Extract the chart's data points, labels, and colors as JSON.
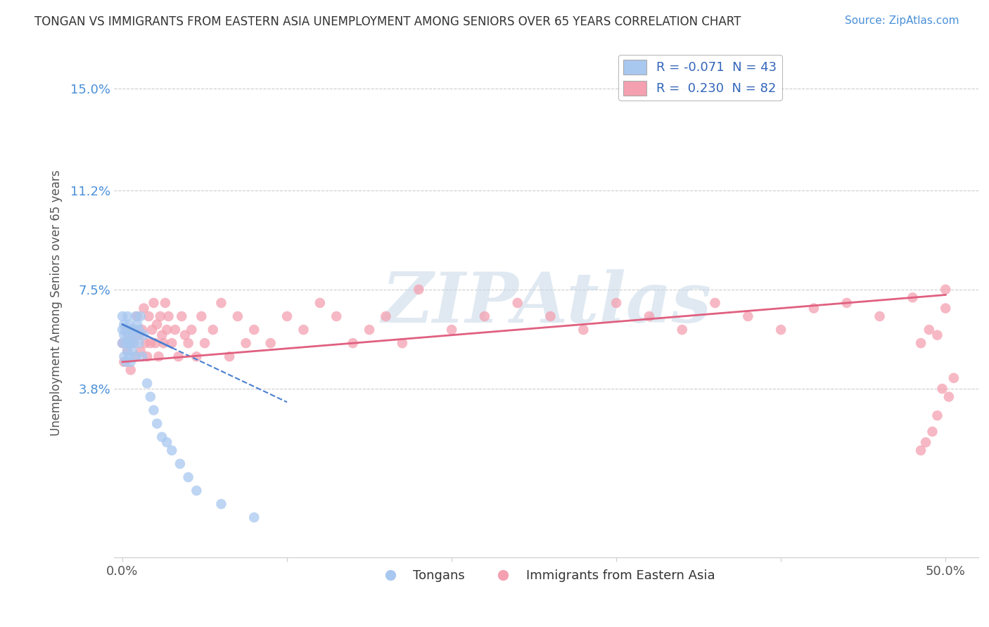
{
  "title": "TONGAN VS IMMIGRANTS FROM EASTERN ASIA UNEMPLOYMENT AMONG SENIORS OVER 65 YEARS CORRELATION CHART",
  "source": "Source: ZipAtlas.com",
  "ylabel": "Unemployment Among Seniors over 65 years",
  "ytick_values": [
    0.038,
    0.075,
    0.112,
    0.15
  ],
  "ytick_labels": [
    "3.8%",
    "7.5%",
    "11.2%",
    "15.0%"
  ],
  "xlim": [
    -0.005,
    0.52
  ],
  "ylim": [
    -0.025,
    0.165
  ],
  "legend1_label": "R = -0.071  N = 43",
  "legend2_label": "R =  0.230  N = 82",
  "legend_bottom1": "Tongans",
  "legend_bottom2": "Immigrants from Eastern Asia",
  "tongan_color": "#a8c8f0",
  "eastern_asia_color": "#f4a0b0",
  "tongan_line_color": "#4a80d0",
  "eastern_asia_line_color": "#e06080",
  "watermark": "ZIPAtlas",
  "tongan_x": [
    0.0,
    0.0,
    0.0,
    0.001,
    0.001,
    0.001,
    0.002,
    0.002,
    0.002,
    0.003,
    0.003,
    0.003,
    0.004,
    0.004,
    0.004,
    0.005,
    0.005,
    0.005,
    0.006,
    0.006,
    0.007,
    0.007,
    0.008,
    0.008,
    0.009,
    0.009,
    0.01,
    0.01,
    0.011,
    0.012,
    0.013,
    0.015,
    0.017,
    0.019,
    0.021,
    0.024,
    0.027,
    0.03,
    0.035,
    0.04,
    0.045,
    0.06,
    0.08
  ],
  "tongan_y": [
    0.06,
    0.065,
    0.055,
    0.058,
    0.062,
    0.05,
    0.055,
    0.06,
    0.048,
    0.052,
    0.058,
    0.065,
    0.05,
    0.055,
    0.062,
    0.048,
    0.055,
    0.06,
    0.052,
    0.058,
    0.055,
    0.06,
    0.05,
    0.065,
    0.058,
    0.062,
    0.055,
    0.06,
    0.065,
    0.05,
    0.058,
    0.04,
    0.035,
    0.03,
    0.025,
    0.02,
    0.018,
    0.015,
    0.01,
    0.005,
    0.0,
    -0.005,
    -0.01
  ],
  "eastern_asia_x": [
    0.0,
    0.001,
    0.002,
    0.003,
    0.004,
    0.005,
    0.006,
    0.007,
    0.008,
    0.009,
    0.01,
    0.011,
    0.012,
    0.013,
    0.014,
    0.015,
    0.016,
    0.017,
    0.018,
    0.019,
    0.02,
    0.021,
    0.022,
    0.023,
    0.024,
    0.025,
    0.026,
    0.027,
    0.028,
    0.03,
    0.032,
    0.034,
    0.036,
    0.038,
    0.04,
    0.042,
    0.045,
    0.048,
    0.05,
    0.055,
    0.06,
    0.065,
    0.07,
    0.075,
    0.08,
    0.09,
    0.1,
    0.11,
    0.12,
    0.13,
    0.14,
    0.15,
    0.16,
    0.17,
    0.18,
    0.2,
    0.22,
    0.24,
    0.26,
    0.28,
    0.3,
    0.32,
    0.34,
    0.36,
    0.38,
    0.4,
    0.42,
    0.44,
    0.46,
    0.48,
    0.5,
    0.5,
    0.49,
    0.495,
    0.485,
    0.505,
    0.502,
    0.498,
    0.495,
    0.492,
    0.488,
    0.485
  ],
  "eastern_asia_y": [
    0.055,
    0.048,
    0.06,
    0.052,
    0.058,
    0.045,
    0.06,
    0.055,
    0.05,
    0.065,
    0.058,
    0.052,
    0.06,
    0.068,
    0.055,
    0.05,
    0.065,
    0.055,
    0.06,
    0.07,
    0.055,
    0.062,
    0.05,
    0.065,
    0.058,
    0.055,
    0.07,
    0.06,
    0.065,
    0.055,
    0.06,
    0.05,
    0.065,
    0.058,
    0.055,
    0.06,
    0.05,
    0.065,
    0.055,
    0.06,
    0.07,
    0.05,
    0.065,
    0.055,
    0.06,
    0.055,
    0.065,
    0.06,
    0.07,
    0.065,
    0.055,
    0.06,
    0.065,
    0.055,
    0.075,
    0.06,
    0.065,
    0.07,
    0.065,
    0.06,
    0.07,
    0.065,
    0.06,
    0.07,
    0.065,
    0.06,
    0.068,
    0.07,
    0.065,
    0.072,
    0.075,
    0.068,
    0.06,
    0.058,
    0.055,
    0.042,
    0.035,
    0.038,
    0.028,
    0.022,
    0.018,
    0.015
  ],
  "tongan_line_x0": 0.0,
  "tongan_line_y0": 0.062,
  "tongan_line_x1": 0.1,
  "tongan_line_y1": 0.033,
  "eastern_line_x0": 0.0,
  "eastern_line_y0": 0.048,
  "eastern_line_x1": 0.5,
  "eastern_line_y1": 0.073
}
